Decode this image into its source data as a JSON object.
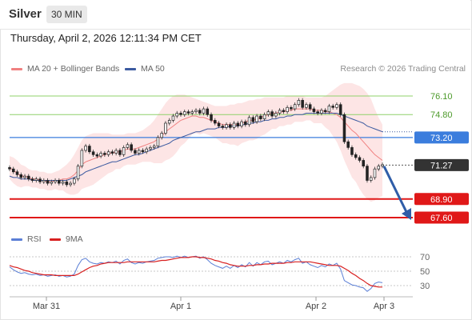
{
  "header": {
    "title": "Silver",
    "timeframe": "30 MIN",
    "datetime": "Thursday, April 2, 2026 12:11:34 PM CET"
  },
  "legend": {
    "ma20_label": "MA 20 + Bollinger Bands",
    "ma50_label": "MA 50",
    "credit": "Research © 2026 Trading Central"
  },
  "rsi_legend": {
    "rsi_label": "RSI",
    "ma_label": "9MA"
  },
  "colors": {
    "ma20": "#f08080",
    "ma50": "#3b5aa0",
    "bands": "#fde2e2",
    "up": "#2f9a3b",
    "down": "#d21f1f",
    "pivot": "#3b7ddd",
    "support": "#e01818",
    "resistance": "#8fd16a",
    "last": "#333333",
    "rsi": "#5b7fd6",
    "rsi_ma": "#d82020"
  },
  "chart_data": [
    {
      "type": "line",
      "subtype": "candlestick",
      "instrument": "Silver",
      "interval": "30 MIN",
      "ylim": [
        67.1,
        77.3
      ],
      "x_ticks": [
        "Mar 31",
        "Apr 1",
        "Apr 2",
        "Apr 3"
      ],
      "price_levels": [
        {
          "value": 76.1,
          "label": "76.10",
          "kind": "resistance"
        },
        {
          "value": 74.8,
          "label": "74.80",
          "kind": "resistance"
        },
        {
          "value": 73.2,
          "label": "73.20",
          "kind": "pivot"
        },
        {
          "value": 71.27,
          "label": "71.27",
          "kind": "last"
        },
        {
          "value": 68.9,
          "label": "68.90",
          "kind": "support"
        },
        {
          "value": 67.6,
          "label": "67.60",
          "kind": "support"
        }
      ],
      "closes": [
        71.0,
        70.8,
        70.6,
        70.4,
        70.5,
        70.3,
        70.2,
        70.3,
        70.1,
        70.2,
        70.0,
        70.1,
        70.2,
        70.0,
        70.1,
        69.9,
        70.0,
        70.3,
        71.2,
        72.3,
        72.6,
        72.2,
        72.0,
        71.9,
        72.1,
        72.0,
        72.2,
        72.1,
        72.3,
        72.0,
        72.5,
        72.7,
        72.3,
        72.1,
        72.3,
        72.2,
        72.4,
        72.5,
        72.6,
        73.2,
        73.5,
        74.2,
        74.4,
        74.7,
        74.9,
        74.8,
        75.0,
        74.9,
        75.0,
        75.1,
        74.9,
        75.2,
        74.8,
        74.4,
        74.2,
        74.0,
        73.9,
        74.1,
        73.9,
        74.2,
        74.0,
        74.3,
        74.1,
        74.6,
        74.3,
        74.7,
        74.5,
        74.8,
        75.0,
        74.7,
        74.9,
        75.1,
        75.0,
        75.3,
        75.2,
        75.5,
        75.8,
        75.3,
        75.5,
        75.2,
        75.0,
        74.9,
        75.1,
        75.0,
        75.4,
        75.3,
        75.5,
        74.8,
        72.9,
        72.5,
        72.0,
        71.8,
        71.6,
        71.2,
        70.2,
        70.4,
        71.0,
        71.2,
        71.3
      ],
      "ma20": [
        71.1,
        70.9,
        70.7,
        70.5,
        70.5,
        70.4,
        70.3,
        70.3,
        70.2,
        70.2,
        70.1,
        70.1,
        70.2,
        70.2,
        70.3,
        70.3,
        70.4,
        70.6,
        70.9,
        71.3,
        71.5,
        71.6,
        71.7,
        71.8,
        71.9,
        72.0,
        72.1,
        72.1,
        72.2,
        72.2,
        72.3,
        72.4,
        72.4,
        72.4,
        72.5,
        72.6,
        72.7,
        72.8,
        72.9,
        73.1,
        73.3,
        73.6,
        73.8,
        74.0,
        74.2,
        74.4,
        74.5,
        74.6,
        74.7,
        74.7,
        74.6,
        74.6,
        74.5,
        74.4,
        74.3,
        74.2,
        74.1,
        74.1,
        74.1,
        74.1,
        74.1,
        74.2,
        74.3,
        74.4,
        74.4,
        74.5,
        74.6,
        74.7,
        74.8,
        74.9,
        74.9,
        75.0,
        75.0,
        75.1,
        75.1,
        75.2,
        75.2,
        75.2,
        75.2,
        75.2,
        75.1,
        75.1,
        75.1,
        75.0,
        75.0,
        74.9,
        74.8,
        74.6,
        74.3,
        74.0,
        73.7,
        73.5,
        73.2,
        72.9,
        72.6,
        72.3,
        72.0,
        71.8,
        71.6
      ],
      "ma50": [
        70.5,
        70.4,
        70.4,
        70.3,
        70.3,
        70.3,
        70.2,
        70.2,
        70.2,
        70.2,
        70.2,
        70.2,
        70.2,
        70.2,
        70.2,
        70.2,
        70.3,
        70.4,
        70.5,
        70.6,
        70.8,
        70.9,
        71.0,
        71.1,
        71.2,
        71.3,
        71.4,
        71.5,
        71.5,
        71.6,
        71.7,
        71.8,
        71.9,
        72.0,
        72.0,
        72.1,
        72.2,
        72.3,
        72.4,
        72.5,
        72.6,
        72.7,
        72.8,
        73.0,
        73.1,
        73.2,
        73.3,
        73.4,
        73.5,
        73.6,
        73.6,
        73.7,
        73.8,
        73.8,
        73.8,
        73.9,
        73.9,
        73.9,
        74.0,
        74.0,
        74.0,
        74.1,
        74.1,
        74.2,
        74.2,
        74.3,
        74.3,
        74.4,
        74.4,
        74.5,
        74.5,
        74.6,
        74.6,
        74.7,
        74.7,
        74.8,
        74.8,
        74.8,
        74.9,
        74.9,
        74.9,
        74.9,
        74.9,
        74.9,
        74.9,
        74.9,
        74.9,
        74.8,
        74.7,
        74.6,
        74.5,
        74.4,
        74.3,
        74.2,
        74.0,
        73.9,
        73.8,
        73.7,
        73.6
      ],
      "bollinger_upper": [
        71.9,
        71.8,
        71.6,
        71.3,
        71.2,
        71.0,
        70.9,
        70.9,
        70.8,
        70.8,
        70.7,
        70.7,
        70.8,
        70.9,
        71.1,
        71.3,
        71.6,
        72.0,
        72.5,
        73.0,
        73.3,
        73.4,
        73.5,
        73.5,
        73.5,
        73.5,
        73.5,
        73.4,
        73.4,
        73.4,
        73.4,
        73.5,
        73.5,
        73.5,
        73.6,
        73.7,
        73.9,
        74.1,
        74.4,
        74.8,
        75.2,
        75.6,
        75.9,
        76.1,
        76.2,
        76.2,
        76.2,
        76.1,
        76.0,
        75.9,
        75.8,
        75.7,
        75.6,
        75.5,
        75.4,
        75.4,
        75.4,
        75.4,
        75.5,
        75.5,
        75.6,
        75.6,
        75.7,
        75.8,
        75.8,
        75.9,
        75.9,
        76.0,
        76.0,
        76.0,
        76.0,
        76.0,
        76.0,
        76.1,
        76.1,
        76.1,
        76.1,
        76.1,
        76.0,
        76.0,
        76.0,
        76.0,
        76.0,
        76.1,
        76.3,
        76.5,
        76.7,
        76.9,
        77.0,
        77.0,
        77.0,
        76.9,
        76.8,
        76.6,
        76.3,
        75.9,
        75.2,
        74.6,
        74.1
      ],
      "bollinger_lower": [
        70.3,
        70.0,
        69.8,
        69.7,
        69.8,
        69.8,
        69.7,
        69.7,
        69.6,
        69.6,
        69.5,
        69.5,
        69.6,
        69.5,
        69.5,
        69.3,
        69.2,
        69.2,
        69.3,
        69.6,
        69.7,
        69.8,
        69.9,
        70.1,
        70.3,
        70.5,
        70.7,
        70.8,
        71.0,
        71.0,
        71.2,
        71.3,
        71.3,
        71.3,
        71.4,
        71.5,
        71.5,
        71.5,
        71.4,
        71.4,
        71.4,
        71.6,
        71.7,
        71.9,
        72.2,
        72.6,
        72.8,
        73.1,
        73.4,
        73.5,
        73.4,
        73.5,
        73.4,
        73.3,
        73.2,
        73.0,
        72.8,
        72.8,
        72.7,
        72.7,
        72.6,
        72.8,
        72.9,
        73.0,
        73.0,
        73.1,
        73.3,
        73.4,
        73.6,
        73.8,
        73.8,
        74.0,
        74.0,
        74.1,
        74.1,
        74.3,
        74.3,
        74.3,
        74.4,
        74.4,
        74.2,
        74.2,
        74.2,
        73.9,
        73.7,
        73.3,
        72.9,
        72.3,
        71.6,
        71.0,
        70.4,
        70.1,
        69.6,
        69.2,
        68.9,
        68.7,
        68.8,
        69.0,
        69.1
      ]
    },
    {
      "type": "line",
      "title": "RSI",
      "ylim": [
        20,
        80
      ],
      "y_ticks": [
        70,
        50,
        30
      ],
      "series": [
        {
          "name": "RSI",
          "values": [
            56,
            52,
            49,
            47,
            48,
            46,
            45,
            46,
            44,
            45,
            43,
            44,
            45,
            43,
            44,
            42,
            43,
            46,
            58,
            66,
            68,
            63,
            61,
            60,
            62,
            61,
            63,
            62,
            64,
            60,
            65,
            67,
            62,
            60,
            62,
            61,
            63,
            64,
            65,
            68,
            69,
            70,
            70,
            69,
            71,
            69,
            71,
            69,
            70,
            71,
            68,
            70,
            66,
            61,
            58,
            56,
            54,
            57,
            54,
            58,
            55,
            59,
            56,
            62,
            57,
            62,
            59,
            63,
            64,
            59,
            61,
            63,
            61,
            65,
            63,
            66,
            68,
            61,
            63,
            59,
            57,
            55,
            58,
            56,
            60,
            58,
            61,
            53,
            37,
            34,
            31,
            30,
            28,
            27,
            22,
            26,
            33,
            35,
            34
          ]
        },
        {
          "name": "9MA",
          "values": [
            58,
            56,
            55,
            53,
            51,
            50,
            48,
            47,
            46,
            45,
            45,
            45,
            44,
            44,
            44,
            44,
            44,
            44,
            46,
            49,
            52,
            55,
            57,
            58,
            60,
            61,
            62,
            62,
            62,
            62,
            62,
            63,
            63,
            63,
            63,
            63,
            63,
            63,
            63,
            64,
            65,
            65,
            66,
            67,
            68,
            69,
            69,
            69,
            70,
            70,
            69,
            69,
            68,
            67,
            65,
            64,
            62,
            61,
            59,
            58,
            57,
            57,
            57,
            58,
            58,
            59,
            59,
            60,
            60,
            61,
            61,
            61,
            61,
            62,
            62,
            63,
            63,
            63,
            63,
            63,
            62,
            61,
            60,
            59,
            58,
            58,
            58,
            57,
            54,
            51,
            47,
            44,
            40,
            37,
            33,
            30,
            29,
            28,
            28
          ]
        }
      ]
    }
  ]
}
